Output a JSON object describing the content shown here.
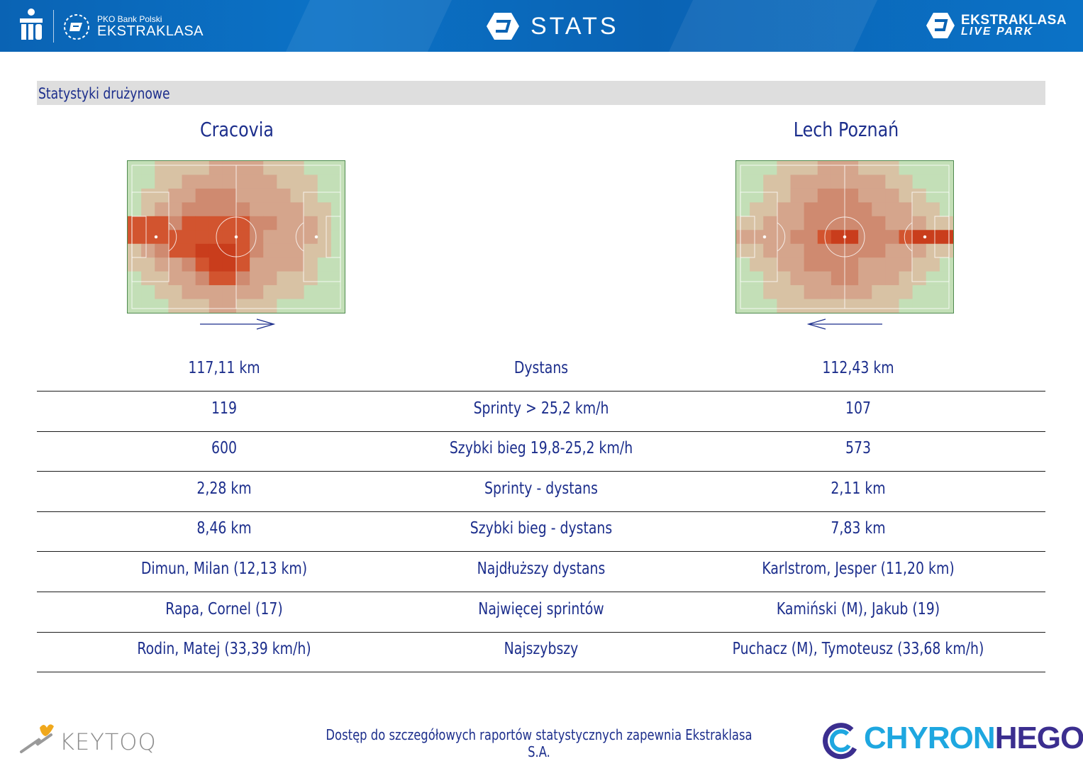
{
  "header": {
    "bank_small": "PKO Bank Polski",
    "bank_big": "EKSTRAKLASA",
    "stats_title": "STATS",
    "live_line1": "EKSTRAKLASA",
    "live_line2": "LIVE PARK",
    "colors": {
      "header_blue": "#0a63b4",
      "text_blue": "#1c2e8c"
    }
  },
  "section": {
    "title": "Statystyki drużynowe"
  },
  "teams": {
    "home": {
      "name": "Cracovia",
      "attack_direction": "right"
    },
    "away": {
      "name": "Lech Poznań",
      "attack_direction": "left"
    }
  },
  "stats": [
    {
      "label": "Dystans",
      "home": "117,11 km",
      "away": "112,43 km"
    },
    {
      "label": "Sprinty > 25,2 km/h",
      "home": "119",
      "away": "107"
    },
    {
      "label": "Szybki bieg 19,8-25,2 km/h",
      "home": "600",
      "away": "573"
    },
    {
      "label": "Sprinty - dystans",
      "home": "2,28 km",
      "away": "2,11 km"
    },
    {
      "label": "Szybki bieg - dystans",
      "home": "8,46 km",
      "away": "7,83 km"
    },
    {
      "label": "Najdłuższy dystans",
      "home": "Dimun, Milan (12,13 km)",
      "away": "Karlstrom, Jesper (11,20 km)"
    },
    {
      "label": "Najwięcej sprintów",
      "home": "Rapa, Cornel (17)",
      "away": "Kamiński (M), Jakub (19)"
    },
    {
      "label": "Najszybszy",
      "home": "Rodin, Matej (33,39 km/h)",
      "away": "Puchacz (M), Tymoteusz (33,68 km/h)"
    }
  ],
  "footer": {
    "note": "Dostęp do szczegółowych raportów statystycznych zapewnia Ekstraklasa S.A.",
    "keytoq": "KEYTOQ",
    "chyron_part1": "CHYRON",
    "chyron_part2": "HEGO"
  },
  "heatmaps": {
    "home": [
      [
        0,
        0,
        1,
        1,
        1,
        1,
        2,
        2,
        2,
        2,
        1,
        1,
        1,
        0,
        0,
        0
      ],
      [
        0,
        0,
        1,
        1,
        2,
        2,
        2,
        2,
        2,
        2,
        2,
        1,
        1,
        1,
        0,
        0
      ],
      [
        0,
        1,
        1,
        2,
        2,
        3,
        3,
        3,
        2,
        2,
        2,
        2,
        1,
        1,
        0,
        0
      ],
      [
        0,
        1,
        2,
        2,
        3,
        3,
        3,
        3,
        3,
        2,
        2,
        2,
        2,
        1,
        1,
        0
      ],
      [
        4,
        4,
        4,
        3,
        4,
        4,
        4,
        4,
        4,
        3,
        3,
        2,
        2,
        2,
        1,
        0
      ],
      [
        4,
        4,
        4,
        4,
        4,
        4,
        4,
        4,
        4,
        3,
        2,
        2,
        2,
        2,
        1,
        0
      ],
      [
        1,
        2,
        3,
        4,
        4,
        5,
        5,
        5,
        4,
        3,
        2,
        2,
        2,
        1,
        1,
        0
      ],
      [
        1,
        1,
        2,
        2,
        3,
        4,
        5,
        5,
        4,
        2,
        2,
        2,
        2,
        1,
        0,
        0
      ],
      [
        0,
        1,
        1,
        2,
        2,
        3,
        4,
        4,
        3,
        2,
        2,
        1,
        1,
        1,
        0,
        0
      ],
      [
        0,
        0,
        1,
        1,
        2,
        2,
        2,
        2,
        2,
        2,
        1,
        1,
        1,
        0,
        0,
        0
      ],
      [
        0,
        0,
        0,
        1,
        1,
        1,
        2,
        2,
        1,
        1,
        1,
        0,
        0,
        0,
        0,
        0
      ]
    ],
    "away": [
      [
        0,
        0,
        0,
        1,
        1,
        1,
        2,
        2,
        2,
        1,
        1,
        1,
        0,
        0,
        0,
        0
      ],
      [
        0,
        0,
        1,
        1,
        2,
        2,
        2,
        2,
        2,
        2,
        2,
        1,
        1,
        0,
        0,
        0
      ],
      [
        0,
        0,
        1,
        1,
        2,
        2,
        3,
        3,
        3,
        2,
        2,
        2,
        1,
        1,
        0,
        0
      ],
      [
        0,
        1,
        1,
        2,
        2,
        3,
        3,
        3,
        3,
        3,
        2,
        2,
        2,
        1,
        1,
        0
      ],
      [
        1,
        1,
        2,
        2,
        2,
        3,
        3,
        3,
        3,
        3,
        3,
        2,
        2,
        2,
        1,
        1
      ],
      [
        2,
        2,
        2,
        2,
        3,
        3,
        4,
        5,
        5,
        3,
        3,
        3,
        4,
        5,
        5,
        5
      ],
      [
        1,
        1,
        2,
        2,
        2,
        3,
        3,
        3,
        3,
        3,
        3,
        2,
        2,
        2,
        1,
        1
      ],
      [
        0,
        1,
        1,
        2,
        2,
        3,
        3,
        3,
        3,
        2,
        2,
        2,
        2,
        1,
        1,
        0
      ],
      [
        0,
        0,
        1,
        1,
        2,
        2,
        2,
        3,
        3,
        2,
        2,
        2,
        1,
        1,
        0,
        0
      ],
      [
        0,
        0,
        1,
        1,
        1,
        2,
        2,
        2,
        2,
        2,
        1,
        1,
        1,
        0,
        0,
        0
      ],
      [
        0,
        0,
        0,
        1,
        1,
        1,
        1,
        1,
        1,
        1,
        1,
        1,
        0,
        0,
        0,
        0
      ]
    ]
  }
}
